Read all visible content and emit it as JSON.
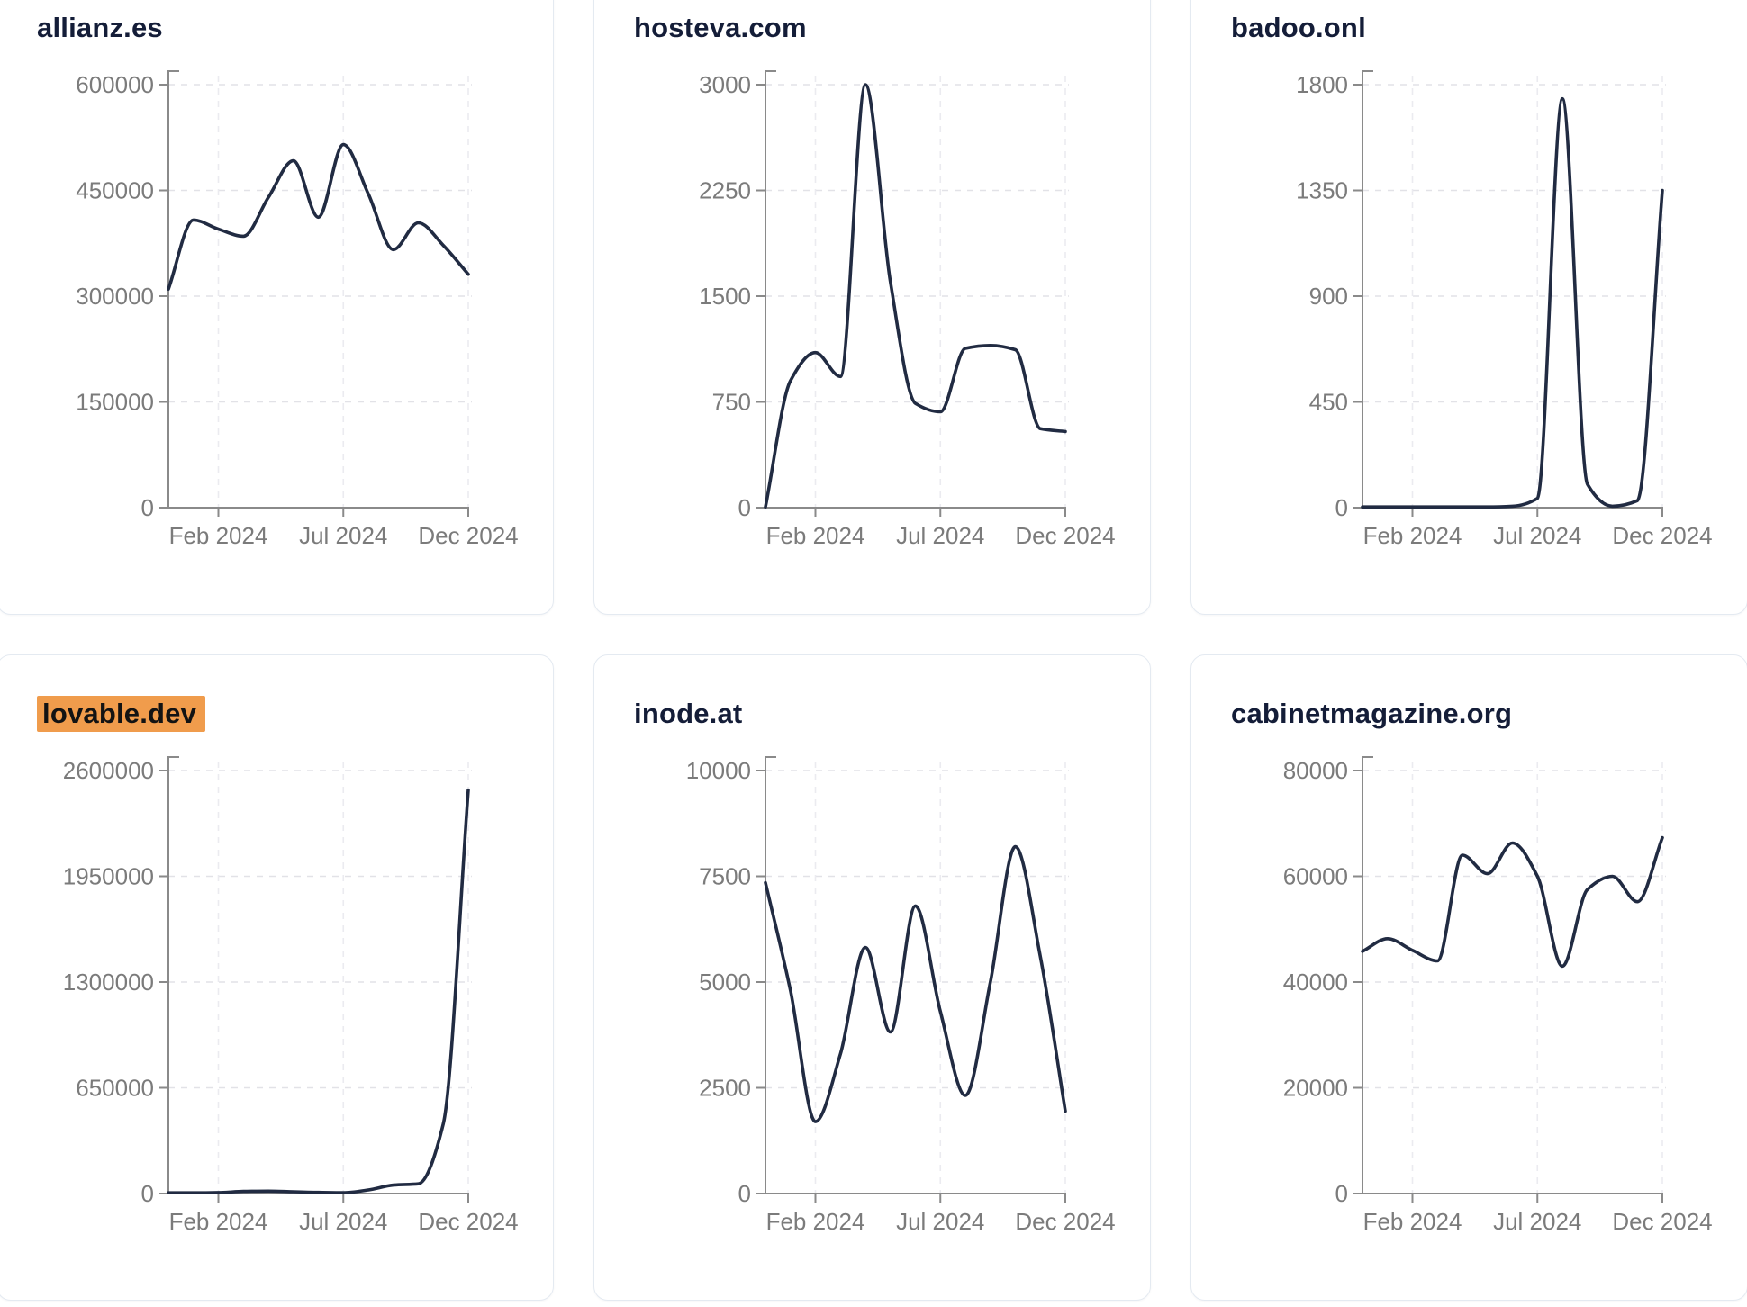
{
  "page": {
    "background": "#ffffff",
    "card_border_color": "#e4eaf1",
    "columns": 3,
    "rows": 2
  },
  "theme": {
    "line_color": "#212b42",
    "title_color": "#141d38",
    "tick_label_color": "#7b7b7b",
    "axis_color": "#8a8a8a",
    "hgrid_color": "#e2e2e7",
    "vgrid_color": "#ebebf0",
    "highlight_color": "#f09c4c",
    "highlight_text_color": "#131313"
  },
  "x_axis": {
    "tick_labels": [
      "Feb 2024",
      "Jul 2024",
      "Dec 2024"
    ],
    "tick_point_indices": [
      2,
      7,
      12
    ],
    "points_per_series": 13,
    "domain_start": "Dec 2023",
    "domain_end": "Dec 2024"
  },
  "chart_data": [
    {
      "type": "line",
      "title": "allianz.es",
      "title_highlighted": false,
      "ylim": [
        0,
        600000
      ],
      "y_ticks": [
        0,
        150000,
        300000,
        450000,
        600000
      ],
      "y_tick_labels": [
        "0",
        "150000",
        "300000",
        "450000",
        "600000"
      ],
      "x_ticks": [
        "Feb 2024",
        "Jul 2024",
        "Dec 2024"
      ],
      "values": [
        310000,
        408000,
        395000,
        385000,
        440000,
        492000,
        412000,
        515000,
        445000,
        366000,
        404000,
        372000,
        331000
      ]
    },
    {
      "type": "line",
      "title": "hosteva.com",
      "title_highlighted": false,
      "ylim": [
        0,
        3000
      ],
      "y_ticks": [
        0,
        750,
        1500,
        2250,
        3000
      ],
      "y_tick_labels": [
        "0",
        "750",
        "1500",
        "2250",
        "3000"
      ],
      "x_ticks": [
        "Feb 2024",
        "Jul 2024",
        "Dec 2024"
      ],
      "values": [
        0,
        900,
        1100,
        930,
        3000,
        1600,
        740,
        680,
        1130,
        1150,
        1120,
        560,
        540
      ]
    },
    {
      "type": "line",
      "title": "badoo.onl",
      "title_highlighted": false,
      "ylim": [
        0,
        1800
      ],
      "y_ticks": [
        0,
        450,
        900,
        1350,
        1800
      ],
      "y_tick_labels": [
        "0",
        "450",
        "900",
        "1350",
        "1800"
      ],
      "x_ticks": [
        "Feb 2024",
        "Jul 2024",
        "Dec 2024"
      ],
      "values": [
        3,
        3,
        3,
        3,
        3,
        3,
        6,
        40,
        1740,
        100,
        6,
        30,
        1350
      ]
    },
    {
      "type": "line",
      "title": "lovable.dev",
      "title_highlighted": true,
      "ylim": [
        0,
        2600000
      ],
      "y_ticks": [
        0,
        650000,
        1300000,
        1950000,
        2600000
      ],
      "y_tick_labels": [
        "0",
        "650000",
        "1300000",
        "1950000",
        "2600000"
      ],
      "x_ticks": [
        "Feb 2024",
        "Jul 2024",
        "Dec 2024"
      ],
      "values": [
        1000,
        3000,
        6000,
        13000,
        15000,
        11000,
        7000,
        5000,
        22000,
        52000,
        60000,
        430000,
        2480000
      ]
    },
    {
      "type": "line",
      "title": "inode.at",
      "title_highlighted": false,
      "ylim": [
        0,
        10000
      ],
      "y_ticks": [
        0,
        2500,
        5000,
        7500,
        10000
      ],
      "y_tick_labels": [
        "0",
        "2500",
        "5000",
        "7500",
        "10000"
      ],
      "x_ticks": [
        "Feb 2024",
        "Jul 2024",
        "Dec 2024"
      ],
      "values": [
        7350,
        4800,
        1700,
        3300,
        5820,
        3820,
        6800,
        4300,
        2320,
        5000,
        8200,
        5600,
        1950
      ]
    },
    {
      "type": "line",
      "title": "cabinetmagazine.org",
      "title_highlighted": false,
      "ylim": [
        0,
        80000
      ],
      "y_ticks": [
        0,
        20000,
        40000,
        60000,
        80000
      ],
      "y_tick_labels": [
        "0",
        "20000",
        "40000",
        "60000",
        "80000"
      ],
      "x_ticks": [
        "Feb 2024",
        "Jul 2024",
        "Dec 2024"
      ],
      "values": [
        45800,
        48200,
        46000,
        44000,
        64000,
        60500,
        66300,
        60000,
        43000,
        57500,
        60000,
        55200,
        67300
      ]
    }
  ]
}
